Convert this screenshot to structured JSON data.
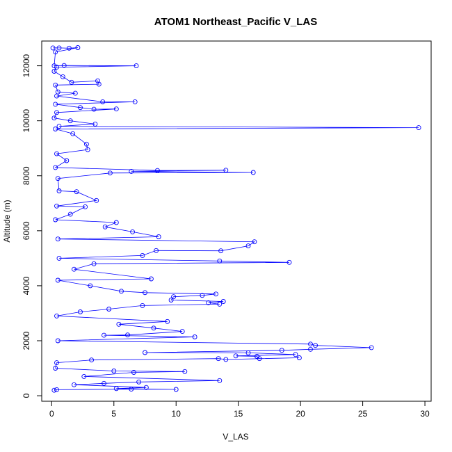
{
  "chart_data": {
    "type": "scatter",
    "title": "ATOM1 Northeast_Pacific V_LAS",
    "xlabel": "V_LAS",
    "ylabel": "Altitude (m)",
    "xlim": [
      -0.8,
      30.5
    ],
    "ylim": [
      -200,
      12900
    ],
    "x_ticks": [
      0,
      5,
      10,
      15,
      20,
      25,
      30
    ],
    "x_tick_labels": [
      "0",
      "5",
      "10",
      "15",
      "20",
      "25",
      "30"
    ],
    "y_ticks": [
      0,
      2000,
      4000,
      6000,
      8000,
      10000,
      12000
    ],
    "y_tick_labels": [
      "0",
      "2000",
      "4000",
      "6000",
      "8000",
      "10000",
      "12000"
    ],
    "grid": false,
    "legend": "none",
    "marker": "open-circle",
    "connected": true,
    "series_color": "#0000ff",
    "series": [
      {
        "points": [
          [
            0.1,
            12650
          ],
          [
            0.6,
            12650
          ],
          [
            1.4,
            12640
          ],
          [
            2.1,
            12660
          ],
          [
            0.3,
            12500
          ],
          [
            0.2,
            12000
          ],
          [
            1.0,
            12010
          ],
          [
            6.8,
            12000
          ],
          [
            0.4,
            11950
          ],
          [
            0.2,
            11800
          ],
          [
            0.9,
            11600
          ],
          [
            1.6,
            11400
          ],
          [
            3.7,
            11450
          ],
          [
            3.8,
            11330
          ],
          [
            0.3,
            11300
          ],
          [
            0.5,
            11050
          ],
          [
            1.9,
            11000
          ],
          [
            0.4,
            10900
          ],
          [
            4.1,
            10690
          ],
          [
            6.7,
            10690
          ],
          [
            0.3,
            10600
          ],
          [
            2.3,
            10480
          ],
          [
            3.4,
            10420
          ],
          [
            5.2,
            10430
          ],
          [
            0.4,
            10300
          ],
          [
            0.2,
            10100
          ],
          [
            1.5,
            10000
          ],
          [
            3.5,
            9880
          ],
          [
            0.6,
            9800
          ],
          [
            29.5,
            9750
          ],
          [
            0.3,
            9700
          ],
          [
            1.7,
            9530
          ],
          [
            2.8,
            9150
          ],
          [
            2.9,
            8950
          ],
          [
            0.4,
            8800
          ],
          [
            1.2,
            8550
          ],
          [
            0.3,
            8300
          ],
          [
            8.5,
            8190
          ],
          [
            14.0,
            8200
          ],
          [
            6.4,
            8160
          ],
          [
            16.2,
            8120
          ],
          [
            4.7,
            8100
          ],
          [
            0.5,
            7900
          ],
          [
            0.6,
            7450
          ],
          [
            2.0,
            7420
          ],
          [
            3.6,
            7100
          ],
          [
            0.4,
            6900
          ],
          [
            2.7,
            6870
          ],
          [
            1.5,
            6600
          ],
          [
            0.3,
            6400
          ],
          [
            5.2,
            6300
          ],
          [
            4.3,
            6140
          ],
          [
            6.5,
            5960
          ],
          [
            8.6,
            5780
          ],
          [
            0.5,
            5700
          ],
          [
            16.3,
            5600
          ],
          [
            15.8,
            5450
          ],
          [
            13.6,
            5270
          ],
          [
            8.4,
            5280
          ],
          [
            7.3,
            5100
          ],
          [
            0.6,
            5000
          ],
          [
            13.5,
            4900
          ],
          [
            19.1,
            4850
          ],
          [
            3.4,
            4800
          ],
          [
            1.8,
            4600
          ],
          [
            8.0,
            4250
          ],
          [
            0.5,
            4200
          ],
          [
            3.1,
            4000
          ],
          [
            5.6,
            3800
          ],
          [
            7.5,
            3750
          ],
          [
            13.2,
            3700
          ],
          [
            12.1,
            3650
          ],
          [
            9.8,
            3600
          ],
          [
            9.6,
            3480
          ],
          [
            13.8,
            3430
          ],
          [
            12.6,
            3380
          ],
          [
            13.5,
            3330
          ],
          [
            7.3,
            3280
          ],
          [
            4.6,
            3150
          ],
          [
            2.3,
            3050
          ],
          [
            0.4,
            2900
          ],
          [
            9.3,
            2700
          ],
          [
            5.4,
            2600
          ],
          [
            8.2,
            2460
          ],
          [
            10.5,
            2340
          ],
          [
            6.1,
            2210
          ],
          [
            4.2,
            2200
          ],
          [
            11.5,
            2140
          ],
          [
            0.5,
            2000
          ],
          [
            20.8,
            1880
          ],
          [
            21.2,
            1830
          ],
          [
            25.7,
            1750
          ],
          [
            20.8,
            1690
          ],
          [
            18.5,
            1650
          ],
          [
            7.5,
            1570
          ],
          [
            15.8,
            1560
          ],
          [
            19.6,
            1500
          ],
          [
            14.8,
            1450
          ],
          [
            16.5,
            1430
          ],
          [
            16.7,
            1350
          ],
          [
            19.9,
            1380
          ],
          [
            14.0,
            1320
          ],
          [
            13.4,
            1350
          ],
          [
            3.2,
            1300
          ],
          [
            0.4,
            1200
          ],
          [
            0.3,
            1000
          ],
          [
            5.0,
            900
          ],
          [
            10.7,
            880
          ],
          [
            6.6,
            850
          ],
          [
            2.6,
            700
          ],
          [
            13.5,
            550
          ],
          [
            7.0,
            500
          ],
          [
            4.2,
            450
          ],
          [
            1.8,
            400
          ],
          [
            7.6,
            300
          ],
          [
            5.2,
            260
          ],
          [
            10.0,
            230
          ],
          [
            6.4,
            240
          ],
          [
            0.4,
            220
          ],
          [
            0.2,
            200
          ]
        ]
      }
    ]
  }
}
